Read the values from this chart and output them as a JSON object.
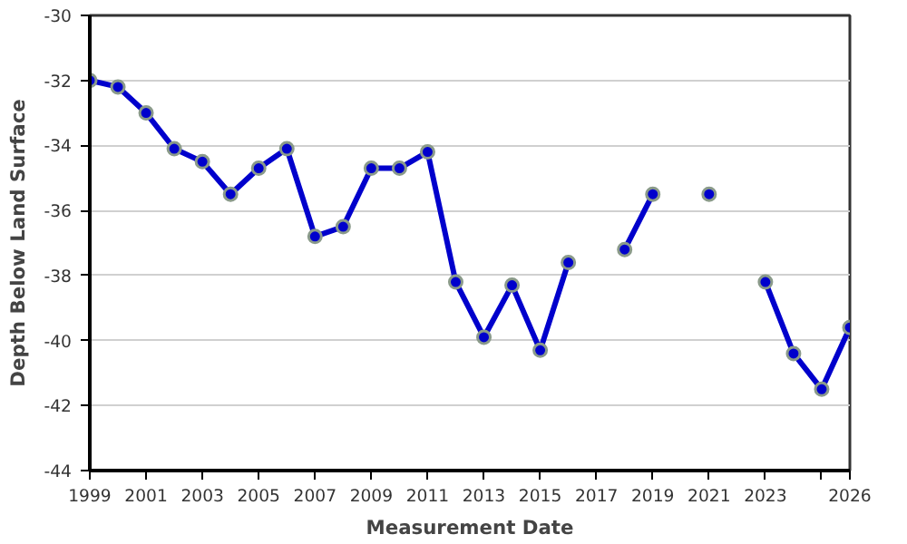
{
  "chart_data": {
    "type": "line",
    "xlabel": "Measurement Date",
    "ylabel": "Depth Below Land Surface",
    "x": [
      1999,
      2000,
      2001,
      2002,
      2003,
      2004,
      2005,
      2006,
      2007,
      2008,
      2009,
      2010,
      2011,
      2012,
      2013,
      2014,
      2015,
      2016,
      2017,
      2018,
      2019,
      2020,
      2021,
      2022,
      2023,
      2024,
      2025,
      2026
    ],
    "series": [
      {
        "color": "#0000cc",
        "values": [
          -32.0,
          -32.2,
          -33.0,
          -34.1,
          -34.5,
          -35.5,
          -34.7,
          -34.1,
          -36.8,
          -36.5,
          -34.7,
          -34.7,
          -34.2,
          -38.2,
          -39.9,
          -38.3,
          -40.3,
          -37.6,
          null,
          -37.2,
          -35.5,
          null,
          -35.5,
          null,
          -38.2,
          -40.4,
          -41.5,
          -39.6
        ]
      }
    ],
    "xlim": [
      1999,
      2026
    ],
    "xticks": [
      1999,
      2001,
      2003,
      2005,
      2007,
      2009,
      2011,
      2013,
      2015,
      2017,
      2019,
      2021,
      2023,
      {
        "value": 2025,
        "label": null
      },
      2026
    ],
    "ylim": [
      -44,
      -30
    ],
    "yticks": [
      -44,
      -42,
      -40,
      -38,
      -36,
      -34,
      -32,
      -30
    ],
    "grid": "y",
    "marker": "circle",
    "line_style": "solid"
  }
}
